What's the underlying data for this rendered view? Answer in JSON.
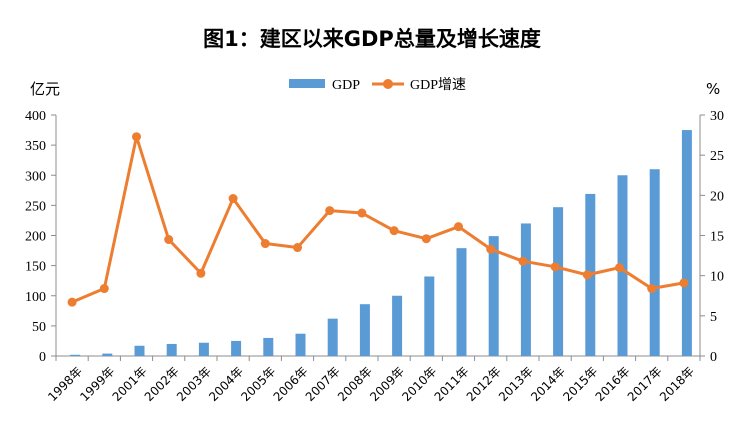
{
  "chart_data": {
    "type": "bar+line",
    "title": "图1：建区以来GDP总量及增长速度",
    "categories": [
      "1998年",
      "1999年",
      "2001年",
      "2002年",
      "2003年",
      "2004年",
      "2005年",
      "2006年",
      "2007年",
      "2008年",
      "2009年",
      "2010年",
      "2011年",
      "2012年",
      "2013年",
      "2014年",
      "2015年",
      "2016年",
      "2017年",
      "2018年"
    ],
    "series": [
      {
        "name": "GDP",
        "type": "bar",
        "axis": "left",
        "color": "#5B9BD5",
        "values": [
          2,
          4,
          17,
          20,
          22,
          25,
          30,
          37,
          62,
          86,
          100,
          132,
          179,
          199,
          220,
          247,
          269,
          300,
          310,
          375
        ]
      },
      {
        "name": "GDP增速",
        "type": "line",
        "axis": "right",
        "color": "#ED7D31",
        "values": [
          6.7,
          8.4,
          27.3,
          14.5,
          10.3,
          19.6,
          14.0,
          13.5,
          18.1,
          17.8,
          15.6,
          14.6,
          16.1,
          13.3,
          11.8,
          11.1,
          10.1,
          11.0,
          8.4,
          9.1
        ]
      }
    ],
    "ylabel": "亿元",
    "y2label": "%",
    "ylim": [
      0,
      400
    ],
    "y2lim": [
      0,
      30
    ],
    "yticks": [
      "0",
      "50",
      "100",
      "150",
      "200",
      "250",
      "300",
      "350",
      "400"
    ],
    "y2ticks": [
      "0",
      "5",
      "10",
      "15",
      "20",
      "25",
      "30"
    ],
    "legend": "top-center",
    "grid": false
  }
}
